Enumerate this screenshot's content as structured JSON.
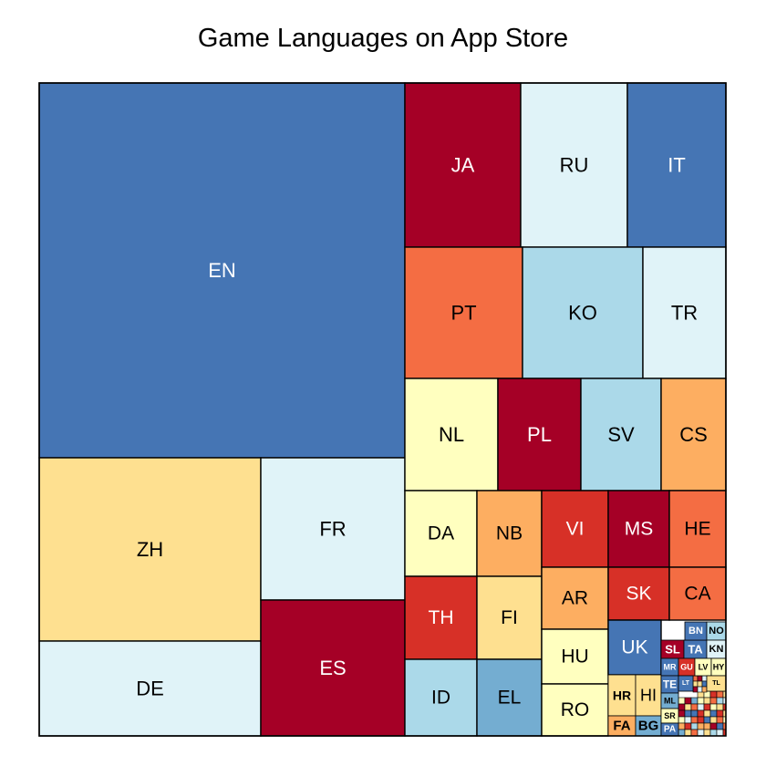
{
  "chart_data": {
    "type": "treemap",
    "title": "Game Languages on App Store",
    "colors": {
      "dark_red": "#a50026",
      "red": "#d73027",
      "orange_red": "#f46d43",
      "orange": "#fdae61",
      "light_orange": "#fee090",
      "pale_yellow": "#ffffbf",
      "pale_blue": "#e0f3f8",
      "light_blue": "#abd9e9",
      "blue": "#74add1",
      "dark_blue": "#4575b4"
    },
    "tiles": [
      {
        "label": "EN",
        "value": 160350,
        "color": "dark_blue"
      },
      {
        "label": "ZH",
        "value": 39500,
        "color": "light_orange"
      },
      {
        "label": "FR",
        "value": 24800,
        "color": "pale_blue"
      },
      {
        "label": "DE",
        "value": 22500,
        "color": "pale_blue"
      },
      {
        "label": "ES",
        "value": 23550,
        "color": "dark_red"
      },
      {
        "label": "JA",
        "value": 22600,
        "color": "dark_red"
      },
      {
        "label": "RU",
        "value": 21900,
        "color": "pale_blue"
      },
      {
        "label": "IT",
        "value": 19200,
        "color": "dark_blue"
      },
      {
        "label": "PT",
        "value": 17400,
        "color": "orange_red"
      },
      {
        "label": "KO",
        "value": 17300,
        "color": "light_blue"
      },
      {
        "label": "TR",
        "value": 12800,
        "color": "pale_blue"
      },
      {
        "label": "NL",
        "value": 12400,
        "color": "pale_yellow"
      },
      {
        "label": "PL",
        "value": 11000,
        "color": "dark_red"
      },
      {
        "label": "SV",
        "value": 10800,
        "color": "light_blue"
      },
      {
        "label": "CS",
        "value": 8700,
        "color": "orange"
      },
      {
        "label": "DA",
        "value": 6800,
        "color": "pale_yellow"
      },
      {
        "label": "NB",
        "value": 6300,
        "color": "orange"
      },
      {
        "label": "TH",
        "value": 6800,
        "color": "red"
      },
      {
        "label": "FI",
        "value": 6300,
        "color": "light_orange"
      },
      {
        "label": "ID",
        "value": 7000,
        "color": "light_blue"
      },
      {
        "label": "EL",
        "value": 6500,
        "color": "blue"
      },
      {
        "label": "VI",
        "value": 5600,
        "color": "red"
      },
      {
        "label": "MS",
        "value": 5300,
        "color": "dark_red"
      },
      {
        "label": "HE",
        "value": 4500,
        "color": "orange_red"
      },
      {
        "label": "AR",
        "value": 4800,
        "color": "orange"
      },
      {
        "label": "SK",
        "value": 4300,
        "color": "red"
      },
      {
        "label": "CA",
        "value": 4000,
        "color": "orange_red"
      },
      {
        "label": "HU",
        "value": 3800,
        "color": "pale_yellow"
      },
      {
        "label": "RO",
        "value": 3750,
        "color": "pale_yellow"
      },
      {
        "label": "UK",
        "value": 3300,
        "color": "dark_blue"
      },
      {
        "label": "HR",
        "value": 1750,
        "color": "light_orange"
      },
      {
        "label": "HI",
        "value": 1550,
        "color": "light_orange"
      },
      {
        "label": "FA",
        "value": 800,
        "color": "orange"
      },
      {
        "label": "BG",
        "value": 700,
        "color": "blue"
      },
      {
        "label": "SL",
        "value": 600,
        "color": "dark_red"
      },
      {
        "label": "TA",
        "value": 550,
        "color": "dark_blue"
      },
      {
        "label": "BN",
        "value": 450,
        "color": "dark_blue"
      },
      {
        "label": "NO",
        "value": 430,
        "color": "light_blue"
      },
      {
        "label": "KN",
        "value": 400,
        "color": "pale_blue"
      },
      {
        "label": "MR",
        "value": 380,
        "color": "dark_blue"
      },
      {
        "label": "GU",
        "value": 360,
        "color": "red"
      },
      {
        "label": "LV",
        "value": 340,
        "color": "pale_yellow"
      },
      {
        "label": "HY",
        "value": 320,
        "color": "pale_yellow"
      },
      {
        "label": "TE",
        "value": 300,
        "color": "dark_blue"
      },
      {
        "label": "LT",
        "value": 290,
        "color": "dark_blue"
      },
      {
        "label": "TL",
        "value": 280,
        "color": "light_orange"
      },
      {
        "label": "ML",
        "value": 270,
        "color": "blue"
      },
      {
        "label": "SR",
        "value": 260,
        "color": "pale_yellow"
      },
      {
        "label": "PA",
        "value": 250,
        "color": "dark_blue"
      }
    ]
  }
}
